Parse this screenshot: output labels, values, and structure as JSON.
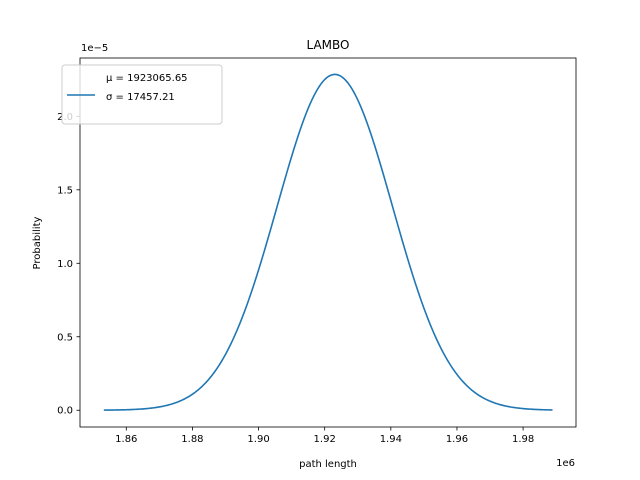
{
  "chart_data": {
    "type": "line",
    "title": "LAMBO",
    "xlabel": "path length",
    "ylabel": "Probability",
    "x_offset_label": "1e6",
    "y_offset_label": "1e−5",
    "xlim": [
      1846000,
      1996000
    ],
    "ylim": [
      -1.141e-06,
      2.397e-05
    ],
    "xticks": [
      1860000,
      1880000,
      1900000,
      1920000,
      1940000,
      1960000,
      1980000
    ],
    "xtick_labels": [
      "1.86",
      "1.88",
      "1.90",
      "1.92",
      "1.94",
      "1.96",
      "1.98"
    ],
    "yticks": [
      0,
      5e-06,
      1e-05,
      1.5e-05,
      2e-05
    ],
    "ytick_labels": [
      "0.0",
      "0.5",
      "1.0",
      "1.5",
      "2.0"
    ],
    "grid": false,
    "legend_placement": "upper-left",
    "series": [
      {
        "name_lines": [
          "μ = 1923065.65",
          "σ = 17457.21"
        ],
        "color": "#1f77b4",
        "mean": 1923065.65,
        "std": 17457.21,
        "x_range": [
          1853200,
          1988900
        ]
      }
    ]
  }
}
